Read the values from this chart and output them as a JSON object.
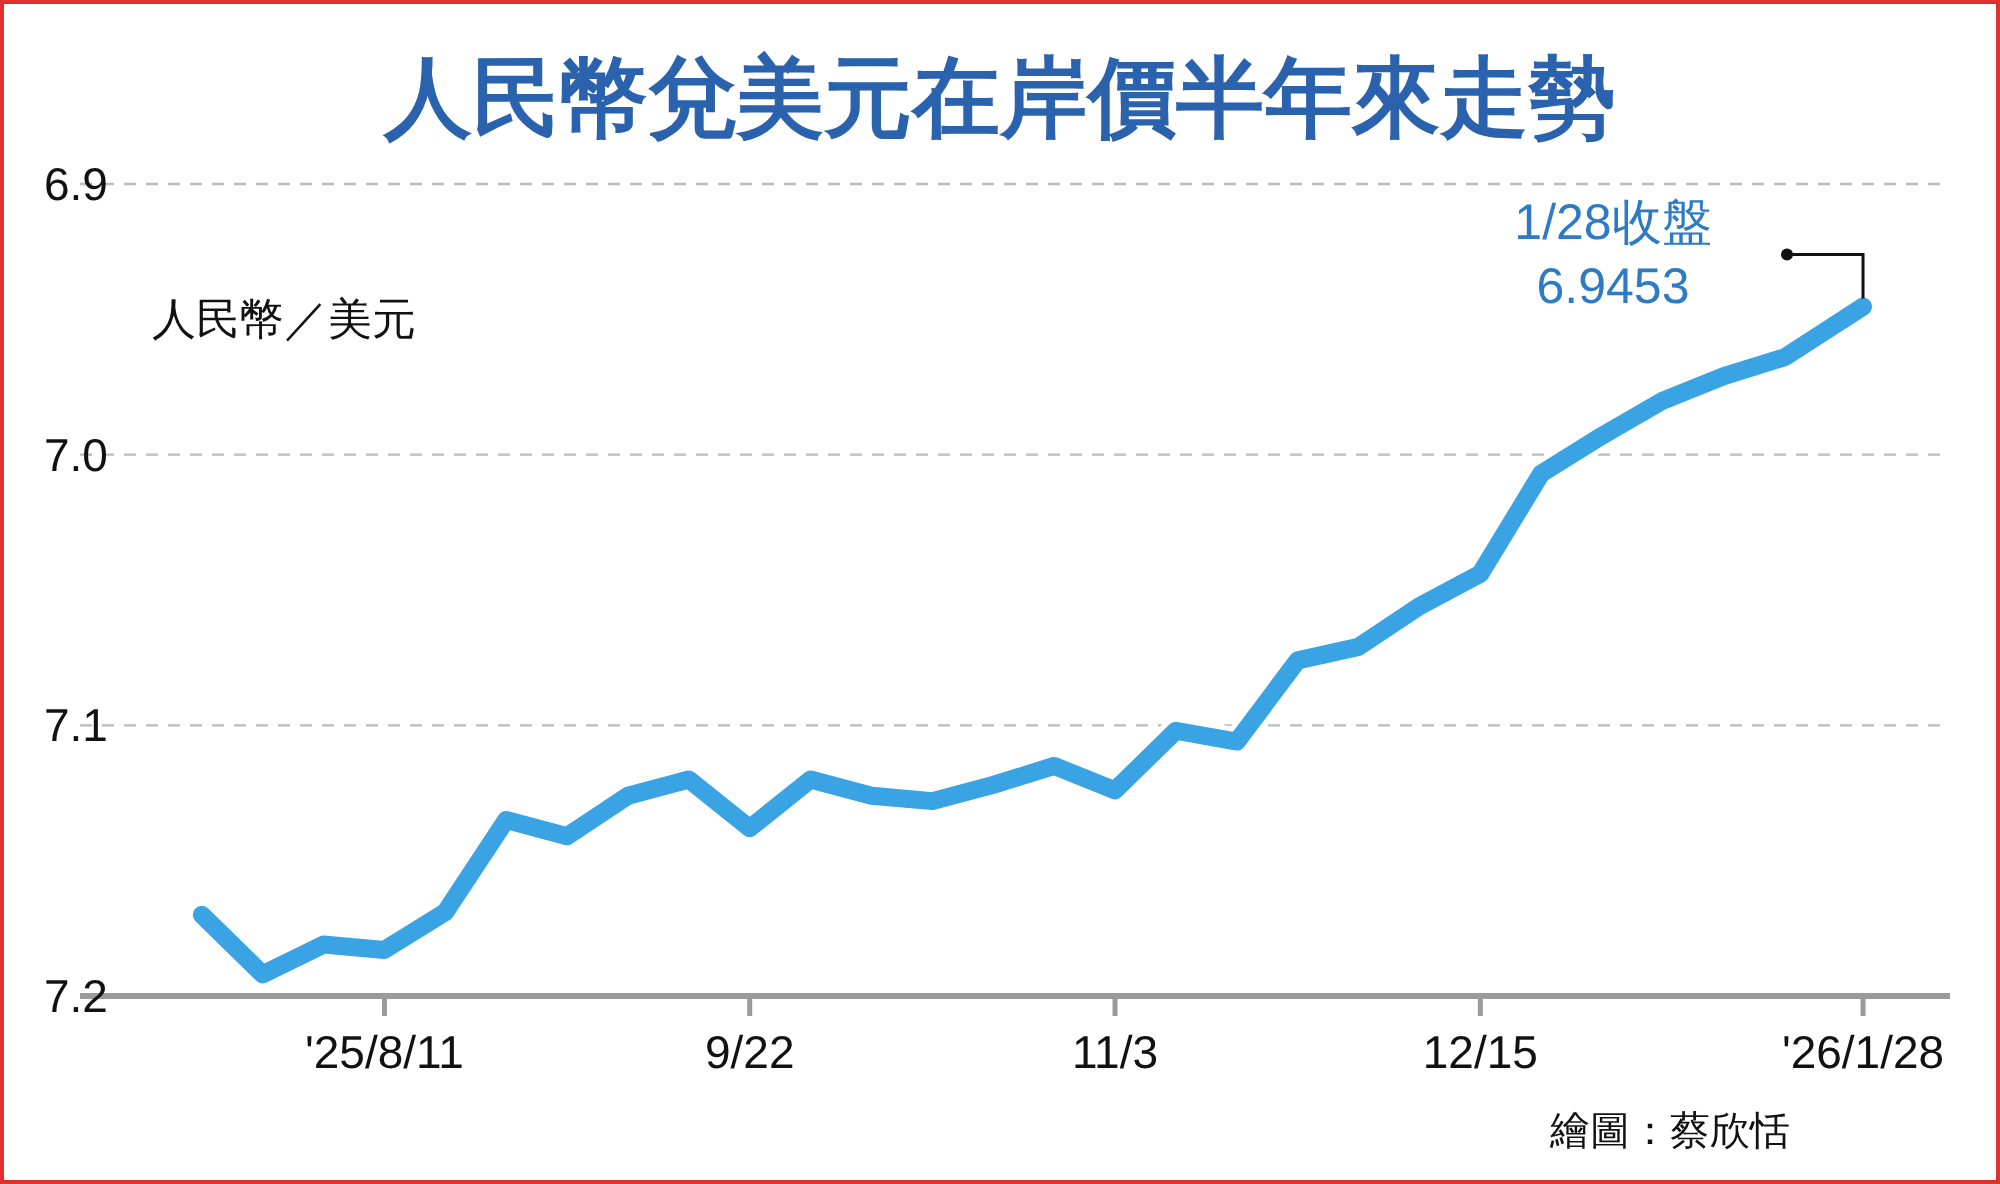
{
  "chart_data": {
    "type": "line",
    "title": "人民幣兌美元在岸價半年來走勢",
    "ylabel": "人民幣／美元",
    "x": [
      "2025-07-21",
      "2025-07-28",
      "2025-08-04",
      "2025-08-11",
      "2025-08-18",
      "2025-08-25",
      "2025-09-01",
      "2025-09-08",
      "2025-09-15",
      "2025-09-22",
      "2025-09-29",
      "2025-10-06",
      "2025-10-13",
      "2025-10-20",
      "2025-10-27",
      "2025-11-03",
      "2025-11-10",
      "2025-11-17",
      "2025-11-24",
      "2025-12-01",
      "2025-12-08",
      "2025-12-15",
      "2025-12-22",
      "2025-12-29",
      "2026-01-05",
      "2026-01-12",
      "2026-01-19",
      "2026-01-28"
    ],
    "series": [
      {
        "color": "#3aa3e3",
        "values": [
          7.17,
          7.192,
          7.181,
          7.183,
          7.169,
          7.135,
          7.141,
          7.126,
          7.12,
          7.138,
          7.12,
          7.126,
          7.128,
          7.122,
          7.115,
          7.124,
          7.102,
          7.106,
          7.076,
          7.071,
          7.056,
          7.044,
          7.007,
          6.993,
          6.98,
          6.971,
          6.964,
          6.9453
        ]
      }
    ],
    "xlim": [
      "2025-07-07",
      "2026-02-07"
    ],
    "ylim": [
      7.2,
      6.9
    ],
    "xticks": [
      {
        "value": "2025-08-11",
        "label": "'25/8/11"
      },
      {
        "value": "2025-09-22",
        "label": "9/22"
      },
      {
        "value": "2025-11-03",
        "label": "11/3"
      },
      {
        "value": "2025-12-15",
        "label": "12/15"
      },
      {
        "value": "2026-01-28",
        "label": "'26/1/28"
      }
    ],
    "yticks": [
      {
        "value": 6.9,
        "label": "6.9"
      },
      {
        "value": 7.0,
        "label": "7.0"
      },
      {
        "value": 7.1,
        "label": "7.1"
      },
      {
        "value": 7.2,
        "label": "7.2"
      }
    ],
    "grid": "y",
    "line_style": "solid",
    "annotations": [
      "1/28收盤 6.9453",
      "繪圖：蔡欣恬"
    ]
  }
}
